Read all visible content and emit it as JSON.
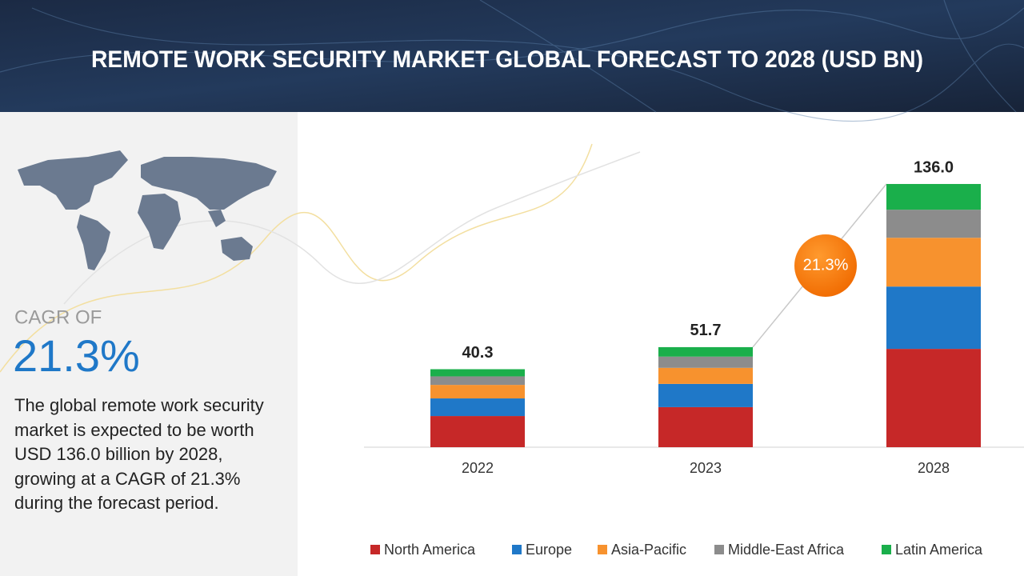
{
  "header": {
    "title": "REMOTE WORK SECURITY MARKET GLOBAL FORECAST TO 2028 (USD BN)"
  },
  "sidebar": {
    "cagr_heading": "CAGR OF",
    "cagr_value": "21.3%",
    "description": "The global remote work security market is expected to be worth USD 136.0 billion by 2028, growing at a CAGR of 21.3% during the forecast period."
  },
  "chart_data": {
    "type": "bar",
    "stacked": true,
    "categories": [
      "2022",
      "2023",
      "2028"
    ],
    "series": [
      {
        "name": "North America",
        "color": "#c62828",
        "values": [
          16.1,
          20.7,
          50.8
        ]
      },
      {
        "name": "Europe",
        "color": "#1f78c8",
        "values": [
          9.1,
          12.0,
          32.2
        ]
      },
      {
        "name": "Asia-Pacific",
        "color": "#f7922e",
        "values": [
          7.0,
          8.3,
          25.2
        ]
      },
      {
        "name": "Middle-East Africa",
        "color": "#8c8c8c",
        "values": [
          4.4,
          5.8,
          14.5
        ]
      },
      {
        "name": "Latin America",
        "color": "#1aaf4b",
        "values": [
          3.7,
          4.9,
          13.3
        ]
      }
    ],
    "totals": [
      40.3,
      51.7,
      136.0
    ],
    "total_labels": [
      "40.3",
      "51.7",
      "136.0"
    ],
    "cagr_label": "21.3%",
    "ylim": [
      0,
      140
    ],
    "legend": "bottom"
  }
}
